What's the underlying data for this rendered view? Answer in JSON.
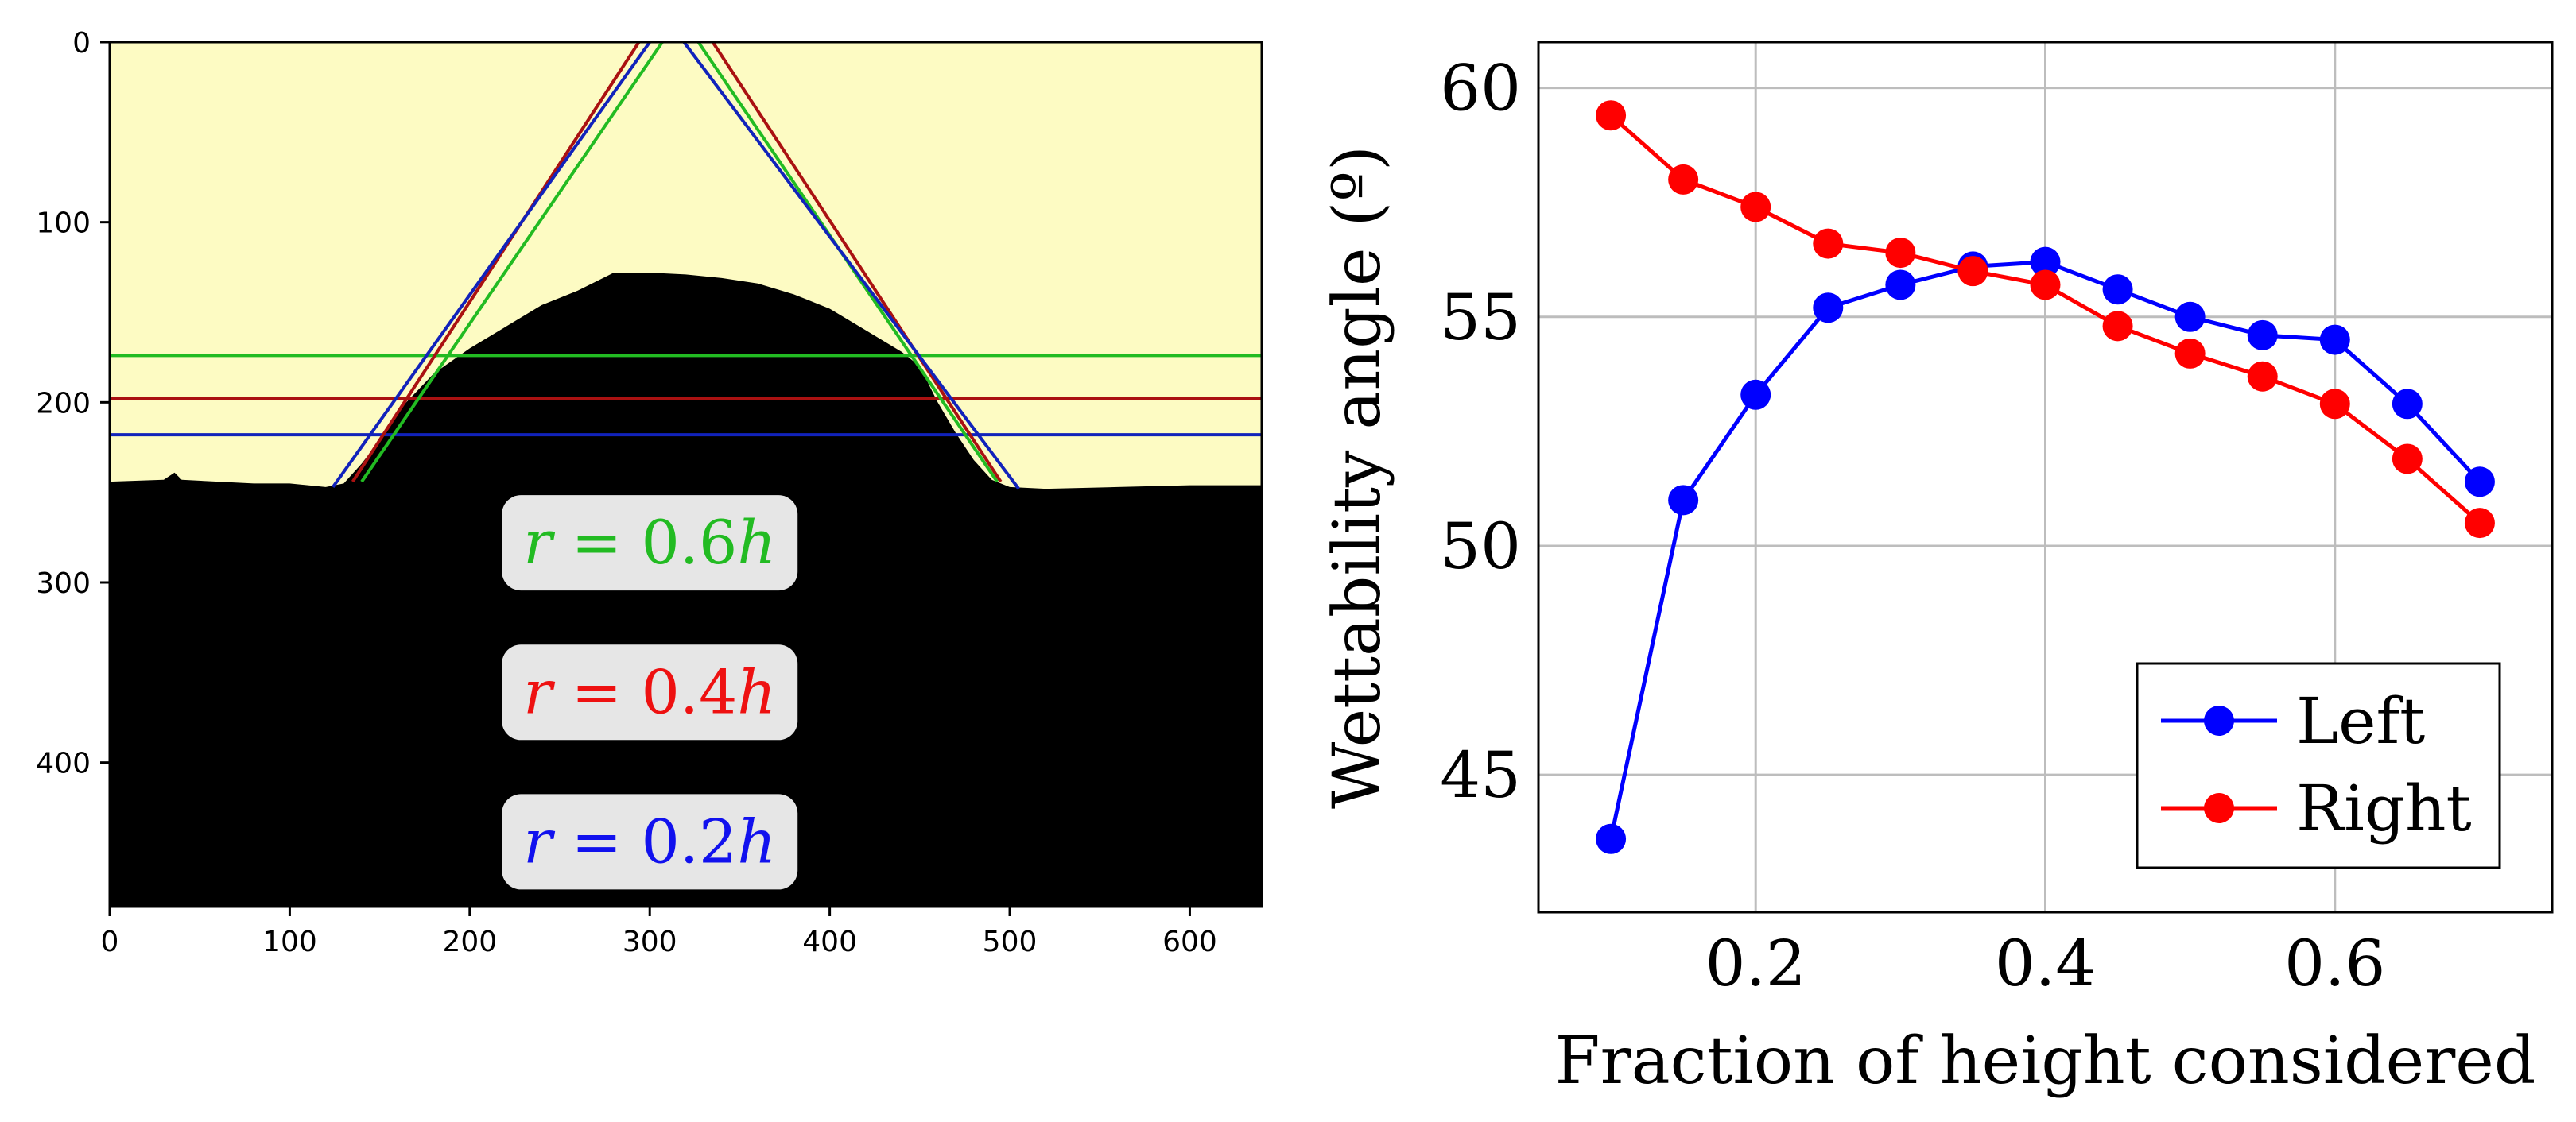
{
  "chart_data": [
    {
      "type": "image",
      "title": "",
      "xlim": [
        0,
        640
      ],
      "ylim": [
        480,
        0
      ],
      "xticks": [
        0,
        100,
        200,
        300,
        400,
        500,
        600
      ],
      "yticks": [
        0,
        100,
        200,
        300,
        400
      ],
      "colors": {
        "background": "#fdfbc3",
        "droplet": "#000000",
        "green": "#22bb22",
        "red": "#aa1111",
        "blue": "#1122bb",
        "label_box": "#e6e6e6"
      },
      "droplet_profile": [
        [
          0,
          244
        ],
        [
          30,
          243
        ],
        [
          36,
          239
        ],
        [
          40,
          243
        ],
        [
          80,
          245
        ],
        [
          100,
          245
        ],
        [
          120,
          247
        ],
        [
          130,
          245
        ],
        [
          140,
          234
        ],
        [
          150,
          221
        ],
        [
          160,
          205
        ],
        [
          180,
          184
        ],
        [
          200,
          170
        ],
        [
          220,
          158
        ],
        [
          240,
          146
        ],
        [
          260,
          138
        ],
        [
          280,
          128
        ],
        [
          300,
          128
        ],
        [
          320,
          129
        ],
        [
          340,
          131
        ],
        [
          360,
          134
        ],
        [
          380,
          140
        ],
        [
          400,
          148
        ],
        [
          420,
          160
        ],
        [
          440,
          172
        ],
        [
          450,
          180
        ],
        [
          460,
          200
        ],
        [
          470,
          217
        ],
        [
          480,
          232
        ],
        [
          490,
          243
        ],
        [
          500,
          247
        ],
        [
          520,
          248
        ],
        [
          560,
          247
        ],
        [
          600,
          246
        ],
        [
          640,
          246
        ]
      ],
      "baselines": [
        {
          "name": "r = 0.6h",
          "color": "#22bb22",
          "y": 174
        },
        {
          "name": "r = 0.4h",
          "color": "#aa1111",
          "y": 198
        },
        {
          "name": "r = 0.2h",
          "color": "#1122bb",
          "y": 218
        }
      ],
      "tangent_lines": [
        {
          "color": "#aa1111",
          "left": [
            [
              135,
              244
            ],
            [
              294,
              0
            ]
          ],
          "right": [
            [
              335,
              0
            ],
            [
              495,
              244
            ]
          ]
        },
        {
          "color": "#22bb22",
          "left": [
            [
              140,
              244
            ],
            [
              307,
              0
            ]
          ],
          "right": [
            [
              327,
              0
            ],
            [
              493,
              244
            ]
          ]
        },
        {
          "color": "#1122bb",
          "left": [
            [
              124,
              247
            ],
            [
              300,
              0
            ]
          ],
          "right": [
            [
              319,
              0
            ],
            [
              505,
              248
            ]
          ]
        }
      ],
      "labels": [
        {
          "var": "r",
          "eq": " = ",
          "value": "0.6",
          "suffix": "h",
          "color": "#22bb22",
          "center": [
            300,
            278
          ]
        },
        {
          "var": "r",
          "eq": " = ",
          "value": "0.4",
          "suffix": "h",
          "color": "#ee1111",
          "center": [
            300,
            361
          ]
        },
        {
          "var": "r",
          "eq": " = ",
          "value": "0.2",
          "suffix": "h",
          "color": "#1111ee",
          "center": [
            300,
            444
          ]
        }
      ]
    },
    {
      "type": "line",
      "title": "",
      "xlabel": "Fraction of height considered",
      "ylabel": "Wettability angle (º)",
      "xlim": [
        0.05,
        0.75
      ],
      "ylim": [
        42,
        61
      ],
      "xticks": [
        0.2,
        0.4,
        0.6
      ],
      "yticks": [
        45,
        50,
        55,
        60
      ],
      "grid": true,
      "legend_position": "bottom-right",
      "x": [
        0.1,
        0.15,
        0.2,
        0.25,
        0.3,
        0.35,
        0.4,
        0.45,
        0.5,
        0.55,
        0.6,
        0.65,
        0.7
      ],
      "series": [
        {
          "name": "Left",
          "color": "#0000ff",
          "values": [
            43.6,
            51.0,
            53.3,
            55.2,
            55.7,
            56.1,
            56.2,
            55.6,
            55.0,
            54.6,
            54.5,
            53.1,
            51.4
          ]
        },
        {
          "name": "Right",
          "color": "#ff0000",
          "values": [
            59.4,
            58.0,
            57.4,
            56.6,
            56.4,
            56.0,
            55.7,
            54.8,
            54.2,
            53.7,
            53.1,
            51.9,
            50.5
          ]
        }
      ]
    }
  ]
}
